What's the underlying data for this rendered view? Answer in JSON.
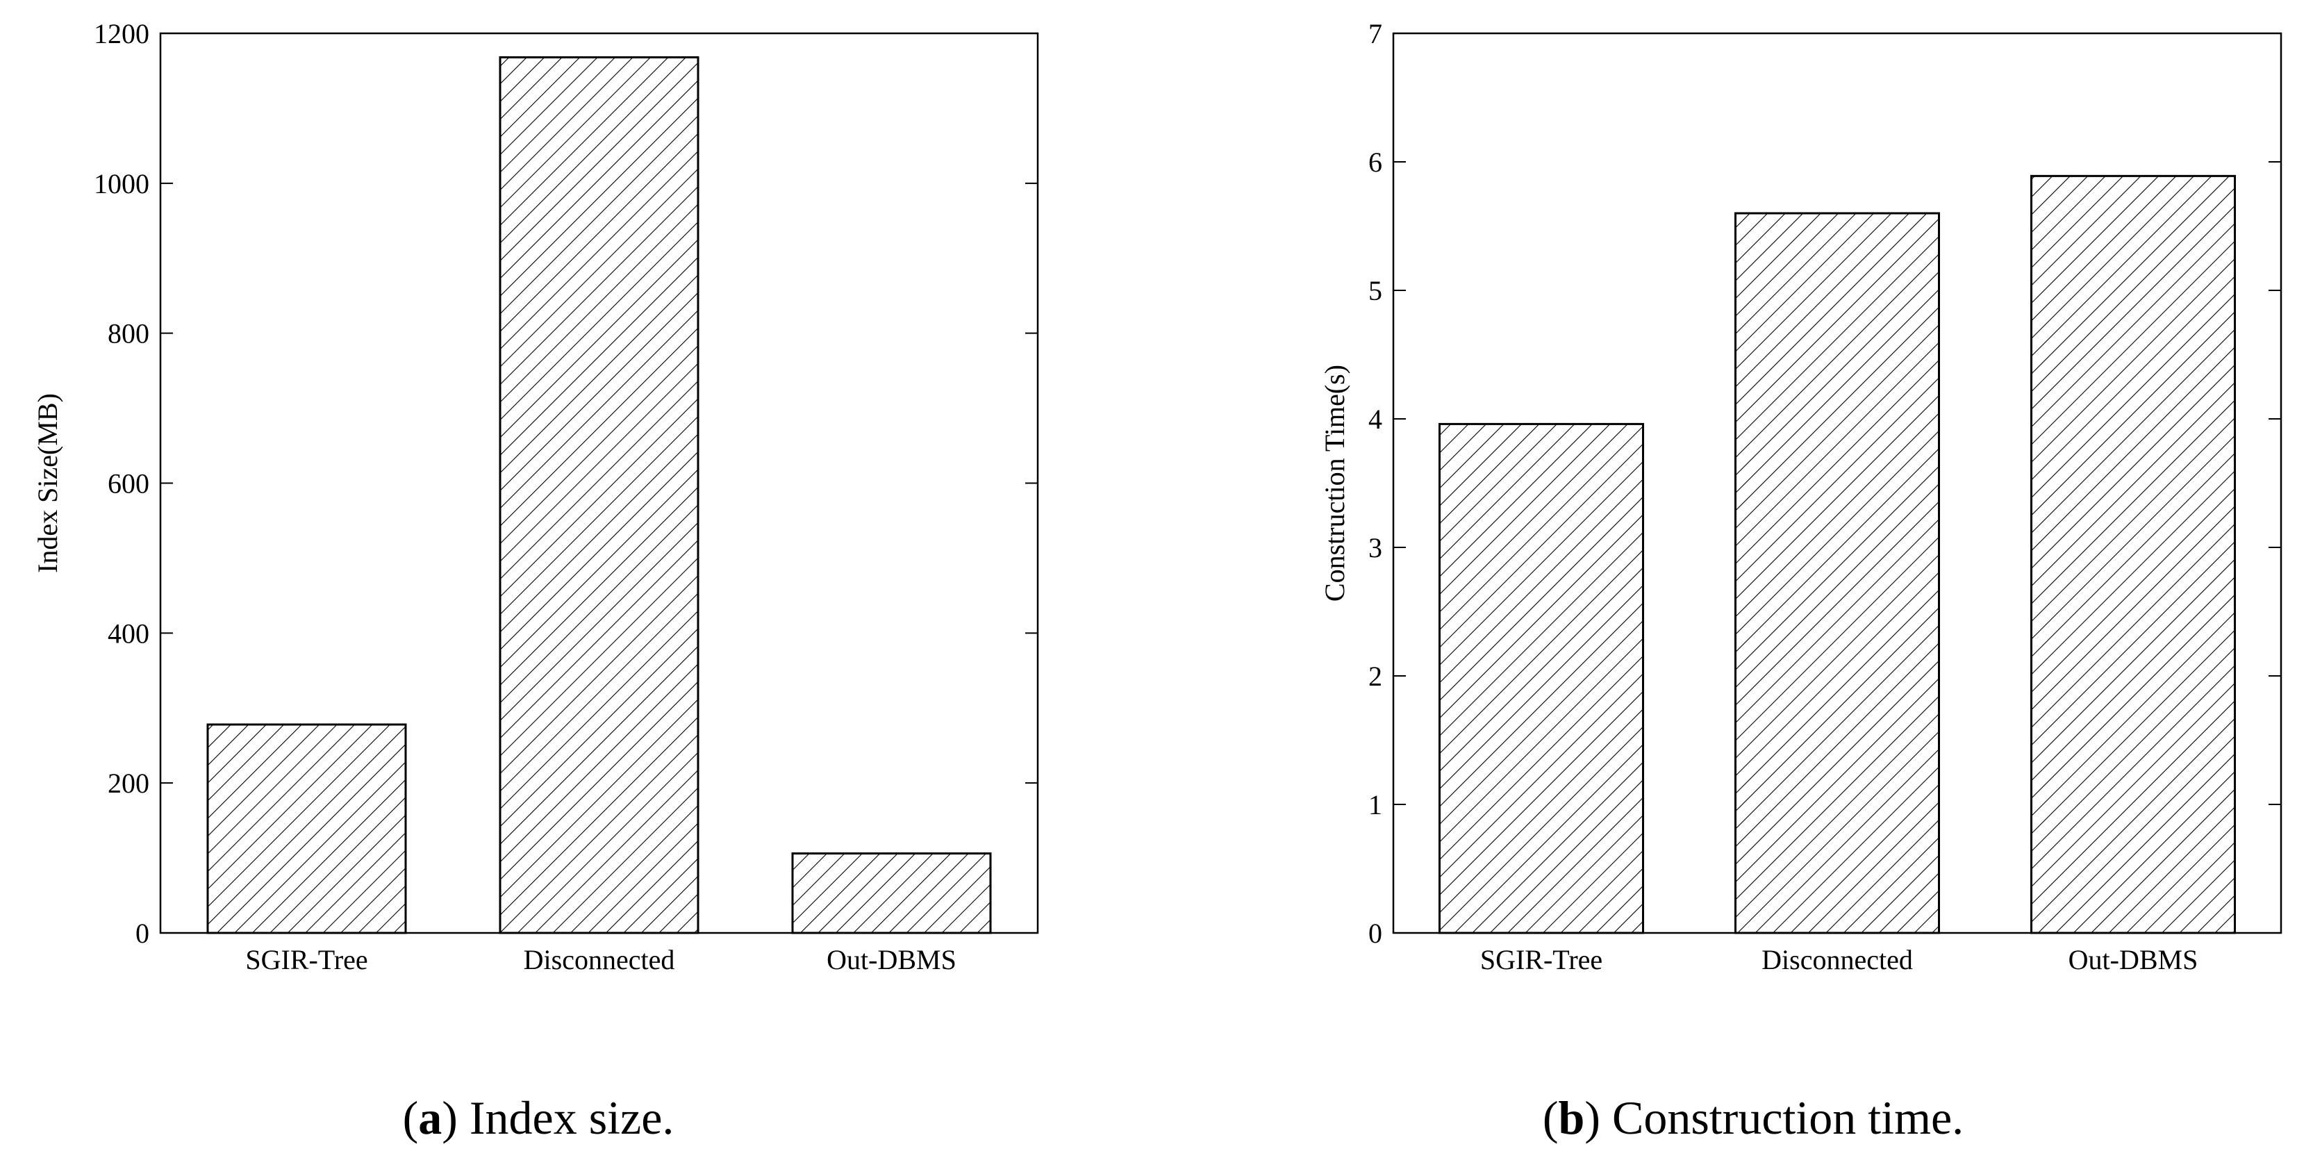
{
  "chart_data": [
    {
      "type": "bar",
      "panel_letter": "a",
      "caption": "Index size.",
      "categories": [
        "SGIR-Tree",
        "Disconnected",
        "Out-DBMS"
      ],
      "values": [
        278,
        1168,
        106
      ],
      "xlabel": "",
      "ylabel": "Index Size(MB)",
      "ylim": [
        0,
        1200
      ],
      "yticks": [
        0,
        200,
        400,
        600,
        800,
        1000,
        1200
      ],
      "grid": false,
      "legend": "none",
      "pattern": "diagonal-hatch"
    },
    {
      "type": "bar",
      "panel_letter": "b",
      "caption": "Construction time.",
      "categories": [
        "SGIR-Tree",
        "Disconnected",
        "Out-DBMS"
      ],
      "values": [
        3.96,
        5.6,
        5.89
      ],
      "xlabel": "",
      "ylabel": "Construction Time(s)",
      "ylim": [
        0,
        7
      ],
      "yticks": [
        0,
        1,
        2,
        3,
        4,
        5,
        6,
        7
      ],
      "grid": false,
      "legend": "none",
      "pattern": "diagonal-hatch"
    }
  ]
}
